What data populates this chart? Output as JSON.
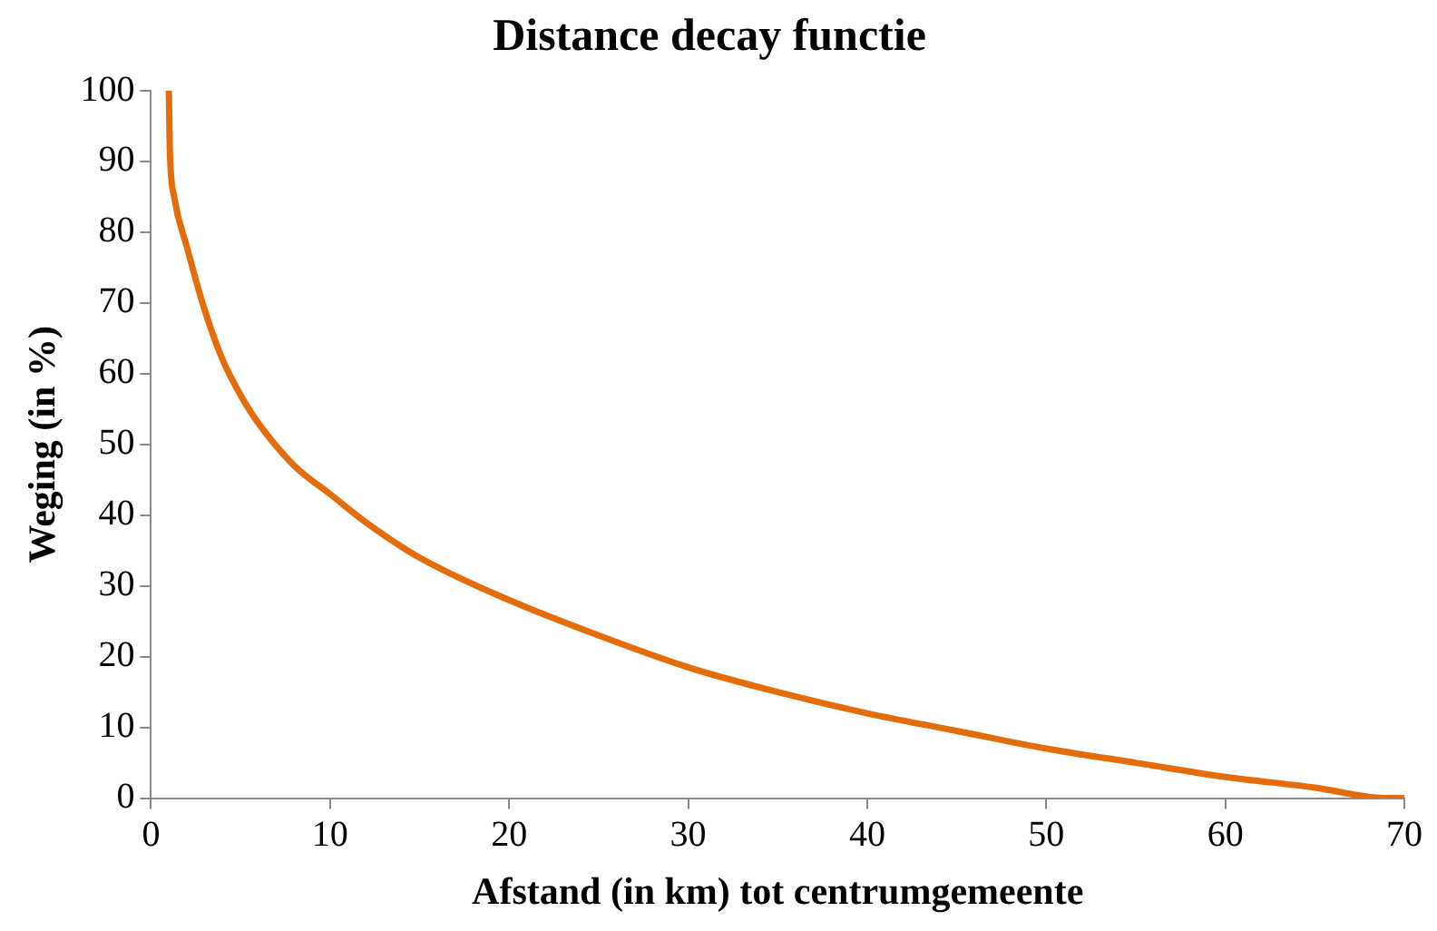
{
  "chart_data": {
    "type": "line",
    "title": "Distance decay functie",
    "xlabel": "Afstand (in km) tot centrumgemeente",
    "ylabel": "Weging (in %)",
    "x": [
      1,
      1.05,
      1.3,
      2,
      3,
      4,
      5,
      6,
      8,
      10,
      12,
      15,
      20,
      25,
      30,
      35,
      40,
      45,
      50,
      55,
      60,
      65,
      69,
      70
    ],
    "series": [
      {
        "color": "#e46c0a",
        "values": [
          100,
          92,
          85,
          78,
          69,
          62,
          57,
          53,
          47,
          43,
          39,
          34,
          28,
          23,
          18.5,
          15,
          12,
          9.5,
          7,
          5,
          3,
          1.5,
          0,
          0
        ]
      }
    ],
    "xlim": [
      0,
      70
    ],
    "xticks": [
      0,
      10,
      20,
      30,
      40,
      50,
      60,
      70
    ],
    "ylim": [
      0,
      100
    ],
    "yticks": [
      0,
      10,
      20,
      30,
      40,
      50,
      60,
      70,
      80,
      90,
      100
    ],
    "grid": false,
    "legend": false,
    "marker": "none",
    "line_style": "solid"
  }
}
